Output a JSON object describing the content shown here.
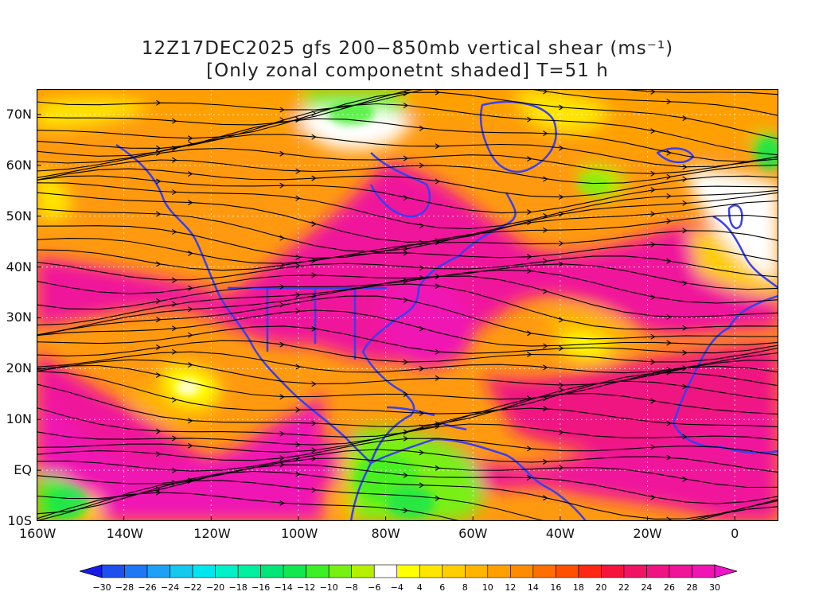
{
  "title": {
    "line1": "12Z17DEC2025 gfs 200−850mb vertical shear (ms⁻¹)",
    "line2": "[Only zonal componetnt shaded] T=51 h"
  },
  "map": {
    "lon_range": [
      -160,
      10
    ],
    "lat_range": [
      -10,
      75
    ],
    "y_ticks": [
      {
        "lat": 70,
        "label": "70N"
      },
      {
        "lat": 60,
        "label": "60N"
      },
      {
        "lat": 50,
        "label": "50N"
      },
      {
        "lat": 40,
        "label": "40N"
      },
      {
        "lat": 30,
        "label": "30N"
      },
      {
        "lat": 20,
        "label": "20N"
      },
      {
        "lat": 10,
        "label": "10N"
      },
      {
        "lat": 0,
        "label": "EQ"
      },
      {
        "lat": -10,
        "label": "10S"
      }
    ],
    "x_ticks": [
      {
        "lon": -160,
        "label": "160W"
      },
      {
        "lon": -140,
        "label": "140W"
      },
      {
        "lon": -120,
        "label": "120W"
      },
      {
        "lon": -100,
        "label": "100W"
      },
      {
        "lon": -80,
        "label": "80W"
      },
      {
        "lon": -60,
        "label": "60W"
      },
      {
        "lon": -40,
        "label": "40W"
      },
      {
        "lon": -20,
        "label": "20W"
      },
      {
        "lon": 0,
        "label": "0"
      }
    ],
    "coast_color": "#3a3ff0",
    "streamline_color": "#000000",
    "grid": "dotted"
  },
  "colorbar": {
    "labels": [
      "-30",
      "-28",
      "-26",
      "-24",
      "-22",
      "-20",
      "-18",
      "-16",
      "-14",
      "-12",
      "-10",
      "-8",
      "-6",
      "-4",
      "4",
      "6",
      "8",
      "10",
      "12",
      "14",
      "16",
      "18",
      "20",
      "22",
      "24",
      "26",
      "28",
      "30"
    ],
    "colors": [
      "#1a1ae6",
      "#1e50f0",
      "#1e78f5",
      "#1ea0f5",
      "#14c8f0",
      "#00e6f0",
      "#00f0c8",
      "#00f0a0",
      "#00e678",
      "#14e650",
      "#3cf028",
      "#78f014",
      "#b4f000",
      "#ffffff",
      "#ffff00",
      "#ffe600",
      "#ffcd00",
      "#ffb400",
      "#ffa000",
      "#ff8c00",
      "#ff6e00",
      "#ff5000",
      "#ff2814",
      "#f5143c",
      "#f01464",
      "#f01482",
      "#f0149b",
      "#f014b4",
      "#f014c8"
    ]
  }
}
